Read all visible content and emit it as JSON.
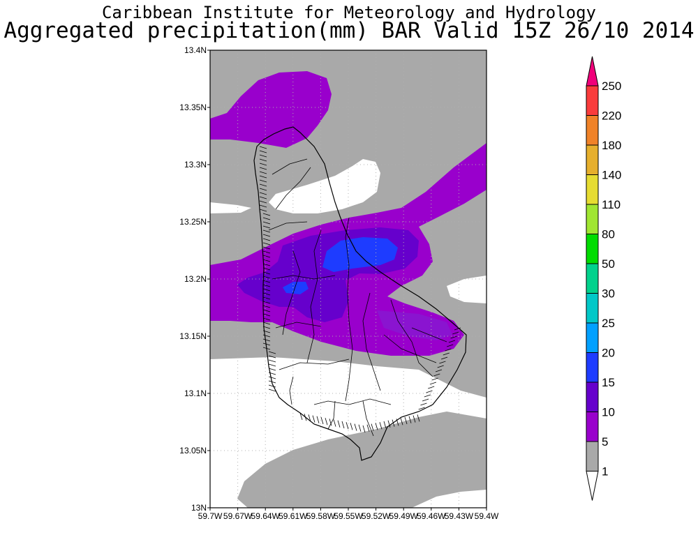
{
  "header": {
    "title": "Caribbean Institute for Meteorology and Hydrology",
    "subtitle": "Aggregated precipitation(mm) BAR Valid 15Z 26/10 2014"
  },
  "axes": {
    "y_ticks": [
      "13N",
      "13.05N",
      "13.1N",
      "13.15N",
      "13.2N",
      "13.25N",
      "13.3N",
      "13.35N",
      "13.4N"
    ],
    "x_ticks": [
      "59.7W",
      "59.67W",
      "59.64W",
      "59.61W",
      "59.58W",
      "59.55W",
      "59.52W",
      "59.49W",
      "59.46W",
      "59.43W",
      "59.4W"
    ],
    "lat_range": [
      13.0,
      13.4
    ],
    "lon_range": [
      -59.7,
      -59.4
    ],
    "grid": "dotted"
  },
  "colorbar": {
    "labels": [
      "1",
      "5",
      "10",
      "15",
      "20",
      "25",
      "30",
      "50",
      "80",
      "110",
      "140",
      "180",
      "220",
      "250"
    ],
    "colors": [
      "#ffffff",
      "#a9a9a9",
      "#9900cc",
      "#6600cc",
      "#1e3cff",
      "#00a0ff",
      "#00c8c8",
      "#00d28c",
      "#00dc00",
      "#a0e632",
      "#e6dc32",
      "#e6af2d",
      "#f08228",
      "#fa3c3c",
      "#f0007a"
    ]
  },
  "legend_colors": {
    "none": "#ffffff",
    "gray": "#a9a9a9",
    "purple": "#9900cc",
    "violet": "#6600cc",
    "blue": "#1e3cff"
  }
}
